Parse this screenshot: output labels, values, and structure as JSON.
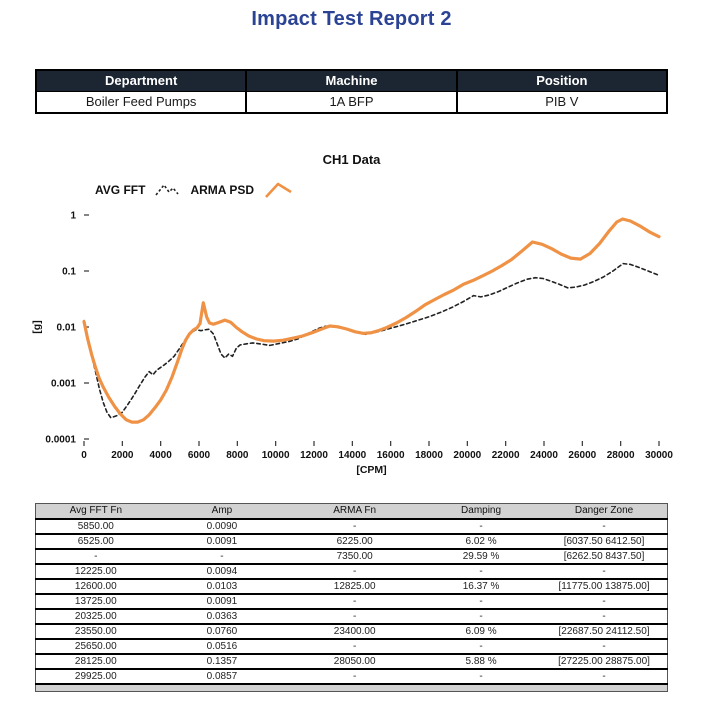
{
  "report": {
    "title": "Impact Test Report 2"
  },
  "info_table": {
    "headers": [
      "Department",
      "Machine",
      "Position"
    ],
    "rows": [
      [
        "Boiler Feed Pumps",
        "1A BFP",
        "PIB V"
      ]
    ]
  },
  "chart_data": {
    "type": "line",
    "title": "CH1 Data",
    "xlabel": "[CPM]",
    "ylabel": "[g]",
    "xlim": [
      0,
      30000
    ],
    "ylim": [
      0.0001,
      1
    ],
    "y_scale": "log",
    "grid": false,
    "legend_position": "top-left",
    "x_ticks": [
      0,
      2000,
      4000,
      6000,
      8000,
      10000,
      12000,
      14000,
      16000,
      18000,
      20000,
      22000,
      24000,
      26000,
      28000,
      30000
    ],
    "y_ticks": [
      1,
      0.1,
      0.01,
      0.001,
      0.0001
    ],
    "colors": {
      "avg_fft": "#222222",
      "arma_psd": "#EF9245"
    },
    "series": [
      {
        "name": "AVG FFT",
        "style": "dashed",
        "color": "#222222",
        "x": [
          0,
          200,
          400,
          600,
          800,
          1000,
          1200,
          1400,
          1700,
          2000,
          2300,
          2600,
          2900,
          3200,
          3400,
          3600,
          3800,
          4100,
          4400,
          4700,
          5000,
          5300,
          5600,
          5850,
          6100,
          6300,
          6525,
          6750,
          6950,
          7150,
          7350,
          7550,
          7750,
          7950,
          8150,
          8450,
          8800,
          9200,
          9700,
          10200,
          10700,
          11200,
          11700,
          12225,
          12600,
          12900,
          13300,
          13725,
          14200,
          14700,
          15200,
          15700,
          16200,
          16800,
          17400,
          18000,
          18600,
          19200,
          19800,
          20325,
          20700,
          21100,
          21600,
          22100,
          22600,
          23100,
          23550,
          23950,
          24400,
          24850,
          25250,
          25650,
          26100,
          26600,
          27100,
          27600,
          28125,
          28500,
          28900,
          29300,
          29925,
          30000
        ],
        "y": [
          0.013,
          0.006,
          0.003,
          0.0016,
          0.0008,
          0.00045,
          0.0003,
          0.00024,
          0.00026,
          0.0003,
          0.00042,
          0.0006,
          0.0009,
          0.0013,
          0.0016,
          0.0014,
          0.0017,
          0.002,
          0.0024,
          0.003,
          0.0042,
          0.006,
          0.008,
          0.009,
          0.0086,
          0.0089,
          0.0091,
          0.0075,
          0.005,
          0.0033,
          0.0028,
          0.0033,
          0.003,
          0.0042,
          0.0048,
          0.005,
          0.0052,
          0.005,
          0.0047,
          0.0051,
          0.0055,
          0.0062,
          0.0077,
          0.0094,
          0.0103,
          0.0104,
          0.0097,
          0.0091,
          0.008,
          0.0074,
          0.008,
          0.0089,
          0.0099,
          0.0113,
          0.0131,
          0.0152,
          0.0182,
          0.0224,
          0.0285,
          0.0363,
          0.0345,
          0.037,
          0.0425,
          0.051,
          0.061,
          0.071,
          0.076,
          0.0735,
          0.065,
          0.057,
          0.05,
          0.0516,
          0.056,
          0.065,
          0.078,
          0.1,
          0.1357,
          0.131,
          0.118,
          0.104,
          0.0857,
          0.085
        ]
      },
      {
        "name": "ARMA PSD",
        "style": "solid",
        "color": "#EF9245",
        "x": [
          0,
          200,
          400,
          600,
          800,
          1000,
          1300,
          1600,
          1900,
          2200,
          2500,
          2800,
          3100,
          3400,
          3700,
          4000,
          4300,
          4600,
          4900,
          5100,
          5300,
          5500,
          5700,
          5900,
          6050,
          6225,
          6400,
          6550,
          6750,
          7000,
          7350,
          7650,
          7950,
          8250,
          8600,
          9000,
          9400,
          9900,
          10400,
          10900,
          11400,
          11900,
          12400,
          12825,
          13250,
          13700,
          14150,
          14600,
          15000,
          15400,
          15800,
          16300,
          16800,
          17300,
          17800,
          18300,
          18800,
          19300,
          19800,
          20300,
          20800,
          21300,
          21800,
          22300,
          22800,
          23400,
          23900,
          24400,
          24900,
          25400,
          25900,
          26400,
          26900,
          27400,
          27800,
          28100,
          28500,
          29000,
          29500,
          30000
        ],
        "y": [
          0.0125,
          0.006,
          0.0032,
          0.0019,
          0.0012,
          0.00085,
          0.00055,
          0.00038,
          0.00028,
          0.00022,
          0.0002,
          0.0002,
          0.00022,
          0.00027,
          0.00036,
          0.0005,
          0.00075,
          0.0013,
          0.0025,
          0.004,
          0.0058,
          0.0075,
          0.0088,
          0.0097,
          0.0115,
          0.027,
          0.015,
          0.0118,
          0.0112,
          0.012,
          0.0133,
          0.0122,
          0.0098,
          0.0082,
          0.0069,
          0.0061,
          0.0057,
          0.0056,
          0.0058,
          0.0063,
          0.0069,
          0.0079,
          0.0092,
          0.0104,
          0.0101,
          0.0092,
          0.0082,
          0.0077,
          0.0079,
          0.0087,
          0.0098,
          0.0118,
          0.0147,
          0.019,
          0.025,
          0.031,
          0.038,
          0.046,
          0.058,
          0.068,
          0.082,
          0.1,
          0.125,
          0.16,
          0.22,
          0.33,
          0.3,
          0.25,
          0.2,
          0.17,
          0.163,
          0.205,
          0.31,
          0.52,
          0.75,
          0.85,
          0.78,
          0.64,
          0.5,
          0.41
        ]
      }
    ]
  },
  "results_table": {
    "headers": [
      "Avg FFT Fn",
      "Amp",
      "ARMA Fn",
      "Damping",
      "Danger Zone"
    ],
    "rows": [
      [
        "5850.00",
        "0.0090",
        "-",
        "-",
        "-"
      ],
      [
        "6525.00",
        "0.0091",
        "6225.00",
        "6.02 %",
        "[6037.50  6412.50]"
      ],
      [
        "-",
        "-",
        "7350.00",
        "29.59 %",
        "[6262.50  8437.50]"
      ],
      [
        "12225.00",
        "0.0094",
        "-",
        "-",
        "-"
      ],
      [
        "12600.00",
        "0.0103",
        "12825.00",
        "16.37 %",
        "[11775.00  13875.00]"
      ],
      [
        "13725.00",
        "0.0091",
        "-",
        "-",
        "-"
      ],
      [
        "20325.00",
        "0.0363",
        "-",
        "-",
        "-"
      ],
      [
        "23550.00",
        "0.0760",
        "23400.00",
        "6.09 %",
        "[22687.50  24112.50]"
      ],
      [
        "25650.00",
        "0.0516",
        "-",
        "-",
        "-"
      ],
      [
        "28125.00",
        "0.1357",
        "28050.00",
        "5.88 %",
        "[27225.00  28875.00]"
      ],
      [
        "29925.00",
        "0.0857",
        "-",
        "-",
        "-"
      ]
    ]
  }
}
